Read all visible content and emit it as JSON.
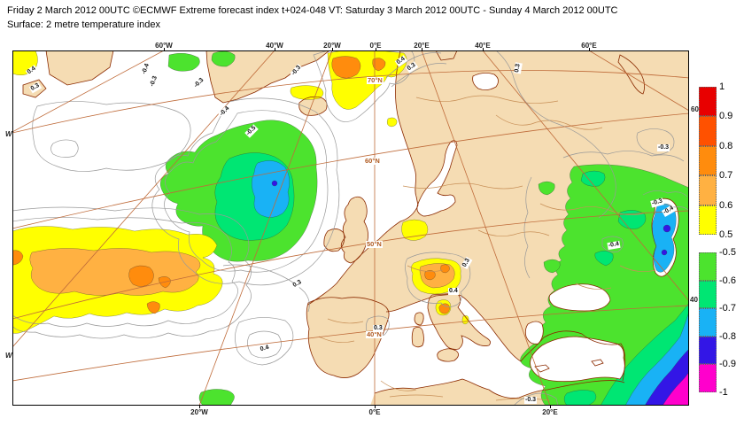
{
  "header": {
    "line1": "Friday 2 March 2012 00UTC ©ECMWF Extreme forecast index t+024-048 VT: Saturday 3 March 2012 00UTC - Sunday 4 March 2012 00UTC",
    "line2": "Surface: 2 metre temperature index"
  },
  "axes": {
    "top": [
      "60°W",
      "40°W",
      "20°W",
      "0°E",
      "20°E",
      "40°E",
      "60°E"
    ],
    "bottom": [
      "20°W",
      "0°E",
      "20°E"
    ],
    "left": [
      "W",
      "W"
    ],
    "right": [
      "60",
      "40"
    ]
  },
  "map": {
    "graticule_labels": [
      "70°N",
      "60°N",
      "50°N",
      "40°N"
    ],
    "contour_labels": [
      "0.4",
      "0.3",
      "-0.4",
      "-0.3",
      "-0.3",
      "-0.4",
      "-0.5",
      "-0.3",
      "0.4",
      "0.3",
      "0.3",
      "0.3",
      "0.4",
      "0.3",
      "0.4",
      "0.3",
      "-0.3",
      "-0.3",
      "-0.4",
      "-0.4",
      "-0.3"
    ]
  },
  "colorbar": {
    "positive": {
      "labels": [
        "1",
        "0.9",
        "0.8",
        "0.7",
        "0.6",
        "0.5"
      ],
      "colors": [
        "#e80000",
        "#ff5100",
        "#ff8c0d",
        "#ffb142",
        "#ffff00"
      ]
    },
    "negative": {
      "labels": [
        "-0.5",
        "-0.6",
        "-0.7",
        "-0.8",
        "-0.9",
        "-1"
      ],
      "colors": [
        "#4ce32e",
        "#00e673",
        "#19b2f5",
        "#3316e6",
        "#ff00cc"
      ]
    }
  },
  "palette": {
    "land": "#f5dcb3",
    "coastline": "#8b2a00",
    "graticule": "#bf6b3a",
    "sea_contour": "#999999",
    "land_contour": "#c89058"
  }
}
